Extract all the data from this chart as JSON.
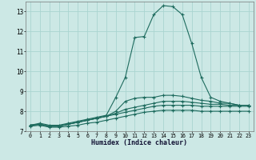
{
  "title": "",
  "xlabel": "Humidex (Indice chaleur)",
  "ylabel": "",
  "bg_color": "#cce8e5",
  "grid_color": "#aad4d0",
  "line_color": "#1e6b5e",
  "xlim": [
    -0.5,
    23.5
  ],
  "ylim": [
    7.0,
    13.5
  ],
  "yticks": [
    7,
    8,
    9,
    10,
    11,
    12,
    13
  ],
  "xticks": [
    0,
    1,
    2,
    3,
    4,
    5,
    6,
    7,
    8,
    9,
    10,
    11,
    12,
    13,
    14,
    15,
    16,
    17,
    18,
    19,
    20,
    21,
    22,
    23
  ],
  "lines": [
    {
      "x": [
        0,
        1,
        2,
        3,
        4,
        5,
        6,
        7,
        8,
        9,
        10,
        11,
        12,
        13,
        14,
        15,
        16,
        17,
        18,
        19,
        20,
        21,
        22,
        23
      ],
      "y": [
        7.3,
        7.4,
        7.3,
        7.3,
        7.4,
        7.5,
        7.6,
        7.7,
        7.8,
        8.7,
        9.7,
        11.7,
        11.75,
        12.85,
        13.3,
        13.25,
        12.85,
        11.4,
        9.7,
        8.7,
        8.5,
        8.4,
        8.3,
        8.3
      ]
    },
    {
      "x": [
        0,
        1,
        2,
        3,
        4,
        5,
        6,
        7,
        8,
        9,
        10,
        11,
        12,
        13,
        14,
        15,
        16,
        17,
        18,
        19,
        20,
        21,
        22,
        23
      ],
      "y": [
        7.3,
        7.35,
        7.25,
        7.25,
        7.35,
        7.45,
        7.55,
        7.65,
        7.75,
        8.0,
        8.5,
        8.65,
        8.7,
        8.7,
        8.8,
        8.8,
        8.75,
        8.65,
        8.55,
        8.5,
        8.4,
        8.4,
        8.3,
        8.3
      ]
    },
    {
      "x": [
        0,
        1,
        2,
        3,
        4,
        5,
        6,
        7,
        8,
        9,
        10,
        11,
        12,
        13,
        14,
        15,
        16,
        17,
        18,
        19,
        20,
        21,
        22,
        23
      ],
      "y": [
        7.3,
        7.35,
        7.25,
        7.25,
        7.35,
        7.45,
        7.55,
        7.65,
        7.75,
        7.9,
        8.1,
        8.2,
        8.3,
        8.4,
        8.5,
        8.5,
        8.5,
        8.45,
        8.4,
        8.35,
        8.35,
        8.3,
        8.3,
        8.3
      ]
    },
    {
      "x": [
        0,
        1,
        2,
        3,
        4,
        5,
        6,
        7,
        8,
        9,
        10,
        11,
        12,
        13,
        14,
        15,
        16,
        17,
        18,
        19,
        20,
        21,
        22,
        23
      ],
      "y": [
        7.3,
        7.35,
        7.25,
        7.25,
        7.35,
        7.45,
        7.55,
        7.65,
        7.75,
        7.85,
        7.95,
        8.05,
        8.15,
        8.25,
        8.3,
        8.3,
        8.3,
        8.3,
        8.25,
        8.25,
        8.25,
        8.25,
        8.25,
        8.25
      ]
    },
    {
      "x": [
        0,
        1,
        2,
        3,
        4,
        5,
        6,
        7,
        8,
        9,
        10,
        11,
        12,
        13,
        14,
        15,
        16,
        17,
        18,
        19,
        20,
        21,
        22,
        23
      ],
      "y": [
        7.25,
        7.3,
        7.2,
        7.2,
        7.25,
        7.3,
        7.4,
        7.45,
        7.55,
        7.65,
        7.75,
        7.85,
        7.95,
        8.0,
        8.05,
        8.05,
        8.05,
        8.05,
        8.0,
        8.0,
        8.0,
        8.0,
        8.0,
        8.0
      ]
    }
  ]
}
